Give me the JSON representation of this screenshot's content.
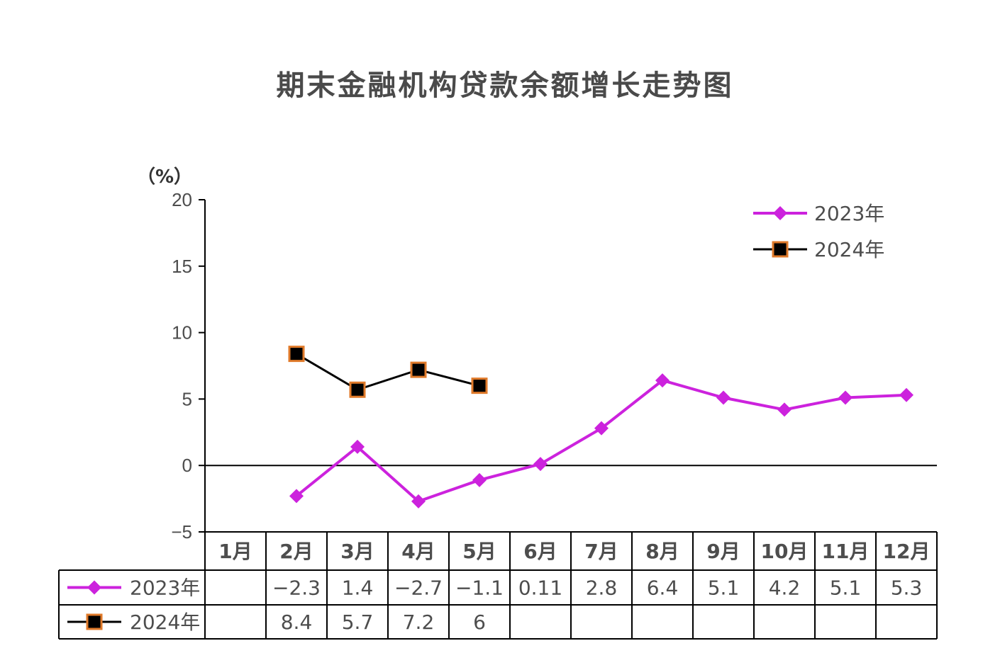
{
  "chart_data": {
    "type": "line",
    "title": "期末金融机构贷款余额增长走势图",
    "ylabel": "（%）",
    "ylim": [
      -5,
      20
    ],
    "yticks": [
      "20",
      "15",
      "10",
      "5",
      "0",
      "−5"
    ],
    "categories": [
      "1月",
      "2月",
      "3月",
      "4月",
      "5月",
      "6月",
      "7月",
      "8月",
      "9月",
      "10月",
      "11月",
      "12月"
    ],
    "series": [
      {
        "name": "2023年",
        "values": [
          null,
          -2.3,
          1.4,
          -2.7,
          -1.1,
          0.11,
          2.8,
          6.4,
          5.1,
          4.2,
          5.1,
          5.3
        ],
        "labels": [
          "",
          "−2.3",
          "1.4",
          "−2.7",
          "−1.1",
          "0.11",
          "2.8",
          "6.4",
          "5.1",
          "4.2",
          "5.1",
          "5.3"
        ],
        "color": "#cc22dd",
        "marker": "diamond"
      },
      {
        "name": "2024年",
        "values": [
          null,
          8.4,
          5.7,
          7.2,
          6,
          null,
          null,
          null,
          null,
          null,
          null,
          null
        ],
        "labels": [
          "",
          "8.4",
          "5.7",
          "7.2",
          "6",
          "",
          "",
          "",
          "",
          "",
          "",
          ""
        ],
        "color": "#000000",
        "marker": "square",
        "marker_edge": "#e07a2a"
      }
    ],
    "legend": "top-right",
    "grid": false
  }
}
